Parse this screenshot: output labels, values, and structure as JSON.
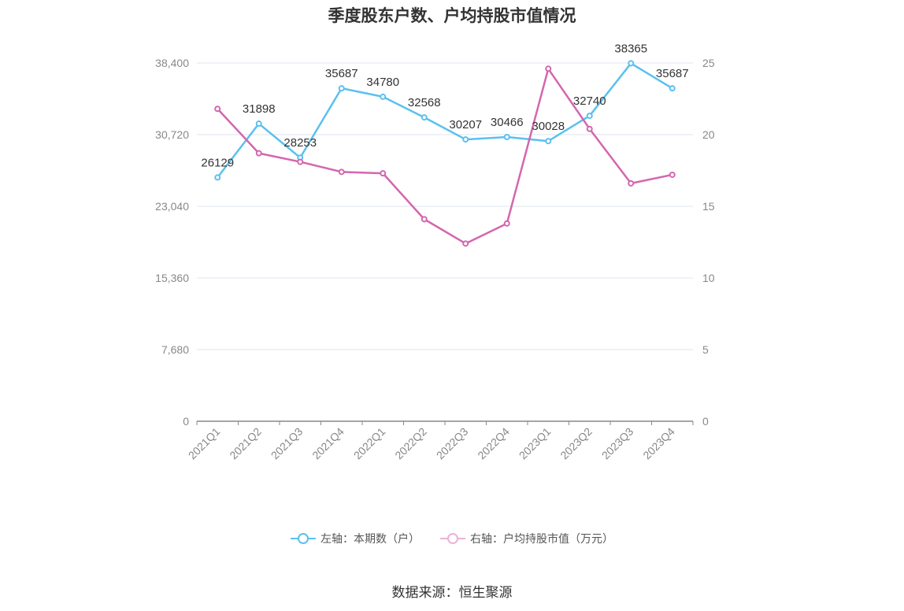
{
  "title": "季度股东户数、户均持股市值情况",
  "source": "数据来源：恒生聚源",
  "legend": {
    "left_series": "左轴：本期数（户）",
    "right_series": "右轴：户均持股市值（万元）"
  },
  "colors": {
    "left_series": "#5bc0ef",
    "right_series": "#d466ae",
    "right_legend": "#e9b3d8",
    "grid": "#dde6f2",
    "axis": "#888888",
    "tick_text": "#888888",
    "label_text": "#333333"
  },
  "chart_data": {
    "type": "line",
    "categories": [
      "2021Q1",
      "2021Q2",
      "2021Q3",
      "2021Q4",
      "2022Q1",
      "2022Q2",
      "2022Q3",
      "2022Q4",
      "2023Q1",
      "2023Q2",
      "2023Q3",
      "2023Q4"
    ],
    "left_axis": {
      "ylim": [
        0,
        38400
      ],
      "ticks": [
        "0",
        "7,680",
        "15,360",
        "23,040",
        "30,720",
        "38,400"
      ]
    },
    "right_axis": {
      "ylim": [
        0,
        25
      ],
      "ticks": [
        "0",
        "5",
        "10",
        "15",
        "20",
        "25"
      ]
    },
    "series": [
      {
        "name": "左轴：本期数（户）",
        "axis": "left",
        "values": [
          26129,
          31898,
          28253,
          35687,
          34780,
          32568,
          30207,
          30466,
          30028,
          32740,
          38365,
          35687
        ],
        "labels": [
          "26129",
          "31898",
          "28253",
          "35687",
          "34780",
          "32568",
          "30207",
          "30466",
          "30028",
          "32740",
          "38365",
          "35687"
        ]
      },
      {
        "name": "右轴：户均持股市值（万元）",
        "axis": "right",
        "values": [
          21.8,
          18.7,
          18.1,
          17.4,
          17.3,
          14.1,
          12.4,
          13.8,
          24.6,
          20.4,
          16.6,
          17.2
        ]
      }
    ],
    "grid": true,
    "legend_position": "bottom"
  }
}
